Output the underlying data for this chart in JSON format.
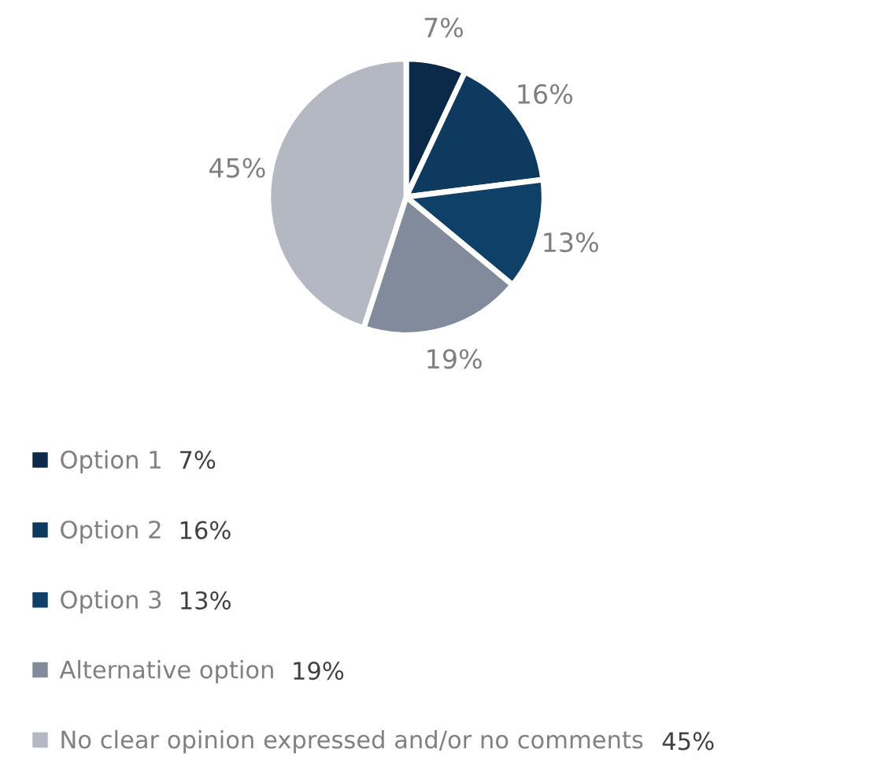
{
  "chart_data": {
    "type": "pie",
    "categories": [
      "Option 1",
      "Option 2",
      "Option 3",
      "Alternative option",
      "No clear opinion expressed and/or no comments"
    ],
    "values": [
      7,
      16,
      13,
      19,
      45
    ],
    "colors": [
      "#0b2a4a",
      "#0d3a5e",
      "#0f4168",
      "#828b9b",
      "#b4b8c2"
    ],
    "value_labels": [
      "7%",
      "16%",
      "13%",
      "19%",
      "45%"
    ],
    "legend": "bottom"
  }
}
